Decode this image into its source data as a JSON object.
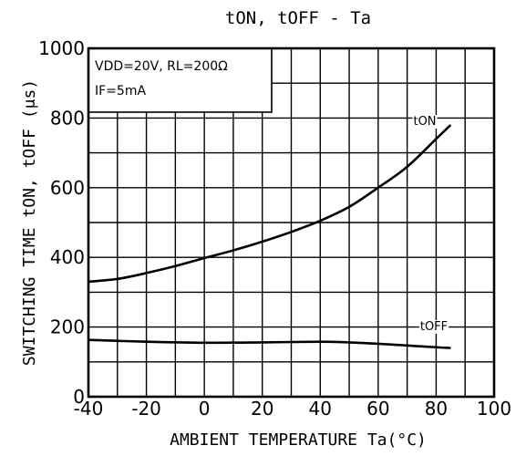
{
  "chart_data": {
    "type": "line",
    "title": "tON, tOFF  - Ta",
    "xlabel": "AMBIENT TEMPERATURE  Ta(°C)",
    "ylabel": "SWITCHING TIME  tON, tOFF (μs)",
    "xlim": [
      -40,
      100
    ],
    "ylim": [
      0,
      1000
    ],
    "xticks": [
      -40,
      -20,
      0,
      20,
      40,
      60,
      80,
      100
    ],
    "yticks": [
      0,
      200,
      400,
      600,
      800,
      1000
    ],
    "x_tick_labels": [
      "-40",
      "-20",
      "0",
      "20",
      "40",
      "60",
      "80",
      "100"
    ],
    "y_tick_labels": [
      "0",
      "200",
      "400",
      "600",
      "800",
      "1000"
    ],
    "grid": true,
    "conditions": {
      "line1": "VDD=20V,  RL=200Ω",
      "line2": "IF=5mA"
    },
    "series": [
      {
        "name": "tON",
        "x": [
          -40,
          -30,
          -20,
          -10,
          0,
          10,
          20,
          30,
          40,
          50,
          60,
          70,
          80,
          85
        ],
        "values": [
          330,
          338,
          355,
          375,
          398,
          420,
          445,
          473,
          505,
          545,
          600,
          660,
          740,
          780
        ]
      },
      {
        "name": "tOFF",
        "x": [
          -40,
          -20,
          0,
          20,
          40,
          50,
          60,
          70,
          80,
          85
        ],
        "values": [
          163,
          158,
          155,
          156,
          158,
          156,
          152,
          147,
          142,
          140
        ]
      }
    ]
  }
}
